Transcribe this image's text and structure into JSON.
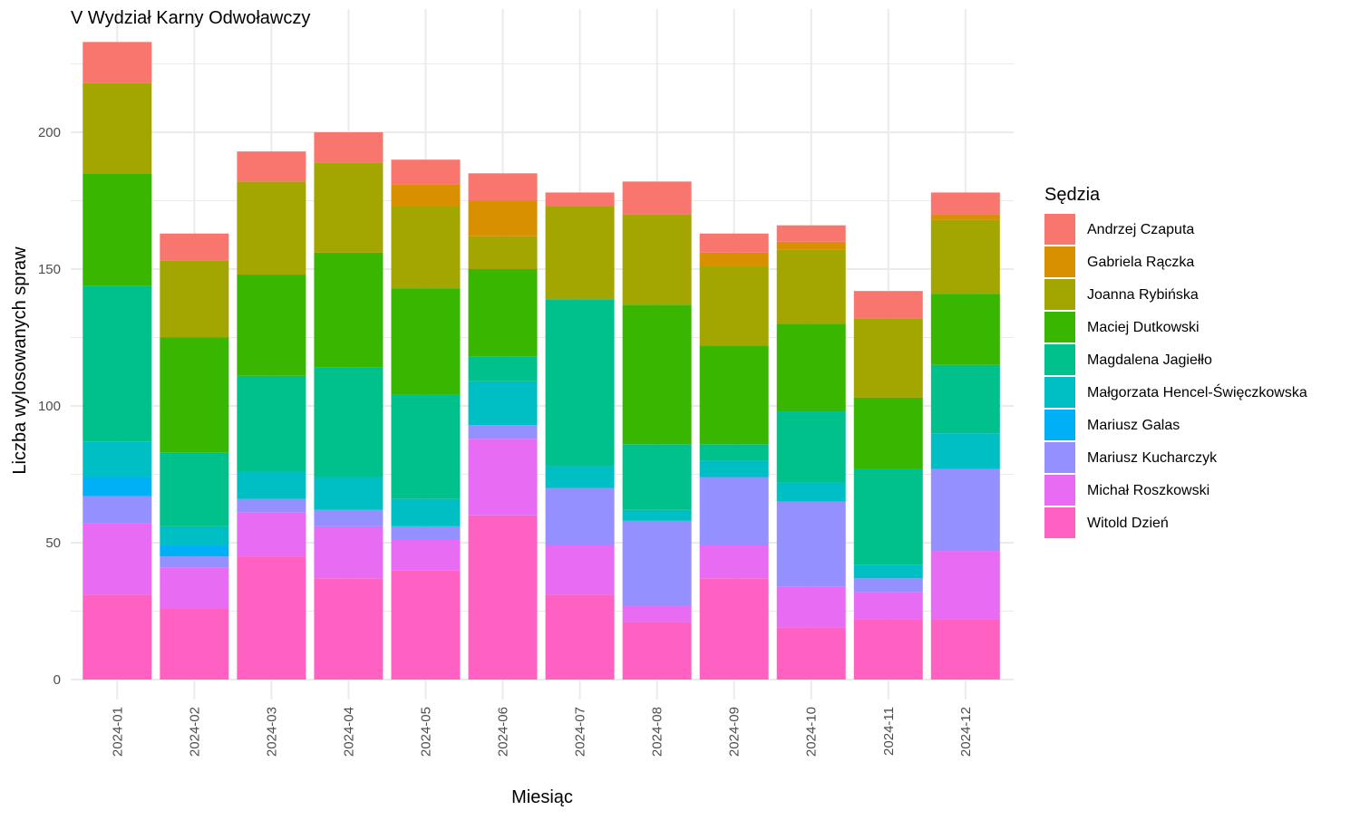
{
  "chart_data": {
    "type": "bar",
    "stacked": true,
    "title": "V Wydział Karny Odwoławczy",
    "xlabel": "Miesiąc",
    "ylabel": "Liczba wylosowanych spraw",
    "ylim": [
      0,
      235
    ],
    "yticks": [
      0,
      50,
      100,
      150,
      200
    ],
    "grid": true,
    "legend_title": "Sędzia",
    "legend_position": "right",
    "categories": [
      "2024-01",
      "2024-02",
      "2024-03",
      "2024-04",
      "2024-05",
      "2024-06",
      "2024-07",
      "2024-08",
      "2024-09",
      "2024-10",
      "2024-11",
      "2024-12"
    ],
    "series": [
      {
        "name": "Witold Dzień",
        "color": "#FF61C3",
        "values": [
          31,
          26,
          45,
          37,
          40,
          60,
          31,
          21,
          37,
          19,
          22,
          22
        ]
      },
      {
        "name": "Michał Roszkowski",
        "color": "#E76BF3",
        "values": [
          26,
          15,
          16,
          19,
          11,
          28,
          18,
          6,
          12,
          15,
          10,
          25
        ]
      },
      {
        "name": "Mariusz Kucharczyk",
        "color": "#9590FF",
        "values": [
          10,
          4,
          5,
          6,
          5,
          5,
          21,
          31,
          25,
          31,
          5,
          30
        ]
      },
      {
        "name": "Mariusz Galas",
        "color": "#00B0F6",
        "values": [
          7,
          4,
          0,
          0,
          0,
          0,
          0,
          0,
          0,
          0,
          0,
          0
        ]
      },
      {
        "name": "Małgorzata Hencel-Święczkowska",
        "color": "#00BFC4",
        "values": [
          13,
          7,
          10,
          12,
          10,
          16,
          8,
          4,
          6,
          7,
          5,
          13
        ]
      },
      {
        "name": "Magdalena Jagiełło",
        "color": "#00C08B",
        "values": [
          57,
          27,
          35,
          40,
          38,
          9,
          61,
          24,
          6,
          26,
          35,
          25
        ]
      },
      {
        "name": "Maciej Dutkowski",
        "color": "#39B600",
        "values": [
          41,
          42,
          37,
          42,
          39,
          32,
          0,
          51,
          36,
          32,
          26,
          26
        ]
      },
      {
        "name": "Joanna Rybińska",
        "color": "#A3A500",
        "values": [
          33,
          28,
          34,
          33,
          30,
          12,
          34,
          33,
          29,
          27,
          29,
          27
        ]
      },
      {
        "name": "Gabriela Rączka",
        "color": "#D89000",
        "values": [
          0,
          0,
          0,
          0,
          8,
          13,
          0,
          0,
          5,
          3,
          0,
          2
        ]
      },
      {
        "name": "Andrzej Czaputa",
        "color": "#F8766D",
        "values": [
          15,
          10,
          11,
          11,
          9,
          10,
          5,
          12,
          7,
          6,
          10,
          8
        ]
      }
    ],
    "legend_order": [
      "Andrzej Czaputa",
      "Gabriela Rączka",
      "Joanna Rybińska",
      "Maciej Dutkowski",
      "Magdalena Jagiełło",
      "Małgorzata Hencel-Święczkowska",
      "Mariusz Galas",
      "Mariusz Kucharczyk",
      "Michał Roszkowski",
      "Witold Dzień"
    ]
  }
}
